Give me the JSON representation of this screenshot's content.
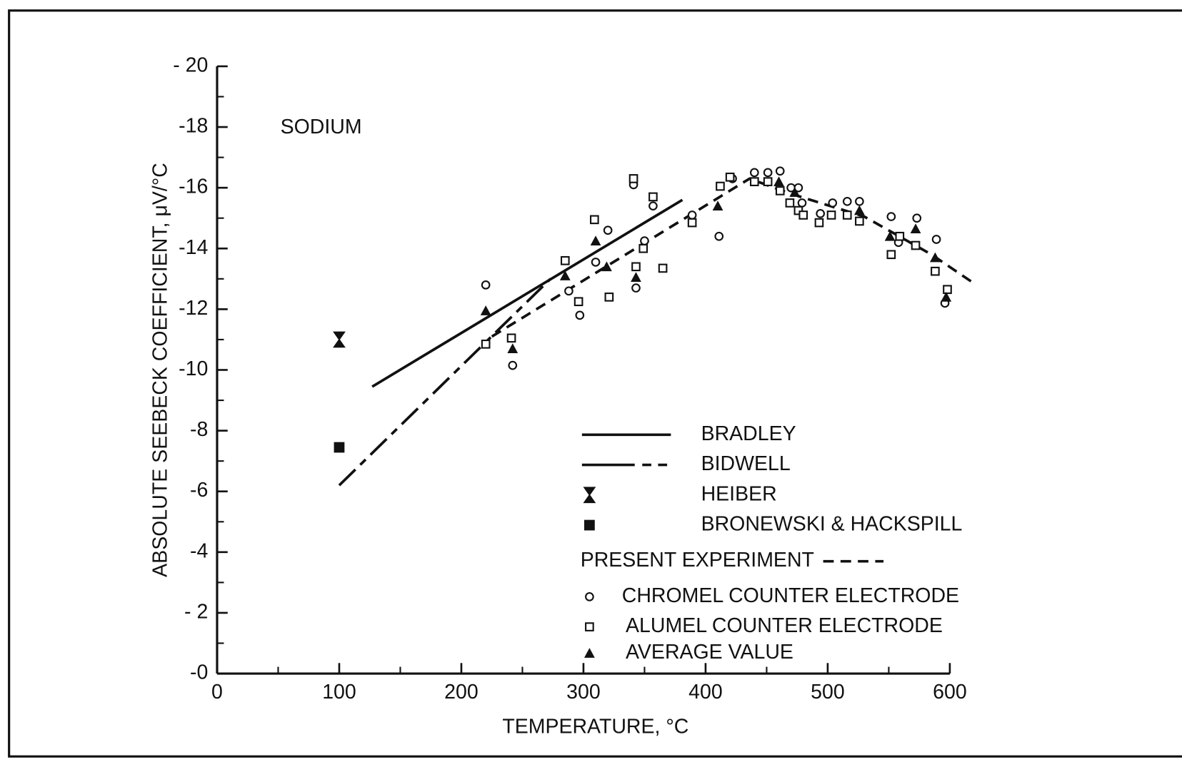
{
  "chart_data": {
    "type": "scatter",
    "annotation": "SODIUM",
    "xlabel": "TEMPERATURE, °C",
    "ylabel": "ABSOLUTE SEEBECK COEFFICIENT, μV/°C",
    "xlim": [
      0,
      600
    ],
    "ylim": [
      0,
      -20
    ],
    "xticks": [
      0,
      100,
      200,
      300,
      400,
      500,
      600
    ],
    "yticks": [
      {
        "value": -20,
        "label": "- 20"
      },
      -18,
      -16,
      -14,
      -12,
      -10,
      -8,
      -6,
      -4,
      {
        "value": -2,
        "label": "- 2"
      },
      {
        "value": 0,
        "label": "-0"
      }
    ],
    "color": "#111111",
    "series": [
      {
        "name": "BRADLEY",
        "marker": "none",
        "line": "solid",
        "x": [
          127,
          381
        ],
        "values": [
          -9.45,
          -15.6
        ]
      },
      {
        "name": "BIDWELL",
        "marker": "none",
        "line": "dashdot",
        "x": [
          100,
          273
        ],
        "values": [
          -6.2,
          -13.0
        ]
      },
      {
        "name": "HEIBER",
        "marker": "hourglass",
        "line": "none",
        "x": [
          100
        ],
        "values": [
          -11.0
        ]
      },
      {
        "name": "BRONEWSKI & HACKSPILL",
        "marker": "filled-square",
        "line": "none",
        "x": [
          100
        ],
        "values": [
          -7.45
        ]
      },
      {
        "name": "PRESENT EXPERIMENT",
        "marker": "none",
        "line": "dashed",
        "x": [
          225,
          436,
          470,
          530,
          585,
          618
        ],
        "values": [
          -11.1,
          -16.3,
          -15.8,
          -15.05,
          -13.8,
          -12.9
        ]
      },
      {
        "name": "CHROMEL COUNTER ELECTRODE",
        "marker": "circle",
        "line": "none",
        "x": [
          220,
          242,
          288,
          297,
          310,
          320,
          341,
          343,
          350,
          357,
          389,
          411,
          422,
          440,
          451,
          461,
          470,
          476,
          479,
          494,
          504,
          516,
          526,
          552,
          558,
          573,
          589,
          596
        ],
        "values": [
          -12.8,
          -10.15,
          -12.6,
          -11.8,
          -13.55,
          -14.6,
          -16.1,
          -12.7,
          -14.25,
          -15.4,
          -15.1,
          -14.4,
          -16.3,
          -16.5,
          -16.5,
          -16.55,
          -16.0,
          -16.0,
          -15.5,
          -15.15,
          -15.5,
          -15.55,
          -15.55,
          -15.05,
          -14.2,
          -15.0,
          -14.3,
          -12.2
        ]
      },
      {
        "name": "ALUMEL COUNTER ELECTRODE",
        "marker": "square",
        "line": "none",
        "x": [
          220,
          241,
          285,
          296,
          309,
          321,
          341,
          343,
          349,
          357,
          365,
          389,
          412,
          420,
          440,
          451,
          461,
          469,
          476,
          480,
          493,
          503,
          516,
          526,
          552,
          559,
          572,
          588,
          598
        ],
        "values": [
          -10.85,
          -11.05,
          -13.6,
          -12.25,
          -14.95,
          -12.4,
          -16.3,
          -13.4,
          -14.0,
          -15.7,
          -13.35,
          -14.85,
          -16.05,
          -16.35,
          -16.2,
          -16.2,
          -15.9,
          -15.5,
          -15.25,
          -15.1,
          -14.85,
          -15.1,
          -15.1,
          -14.9,
          -13.8,
          -14.4,
          -14.1,
          -13.25,
          -12.65
        ]
      },
      {
        "name": "AVERAGE VALUE",
        "marker": "triangle",
        "line": "none",
        "x": [
          220,
          242,
          285,
          310,
          319,
          343,
          410,
          460,
          473,
          526,
          551,
          572,
          588,
          597
        ],
        "values": [
          -11.95,
          -10.7,
          -13.1,
          -14.25,
          -13.4,
          -13.05,
          -15.4,
          -16.2,
          -15.85,
          -15.25,
          -14.4,
          -14.65,
          -13.7,
          -12.4
        ]
      }
    ]
  }
}
